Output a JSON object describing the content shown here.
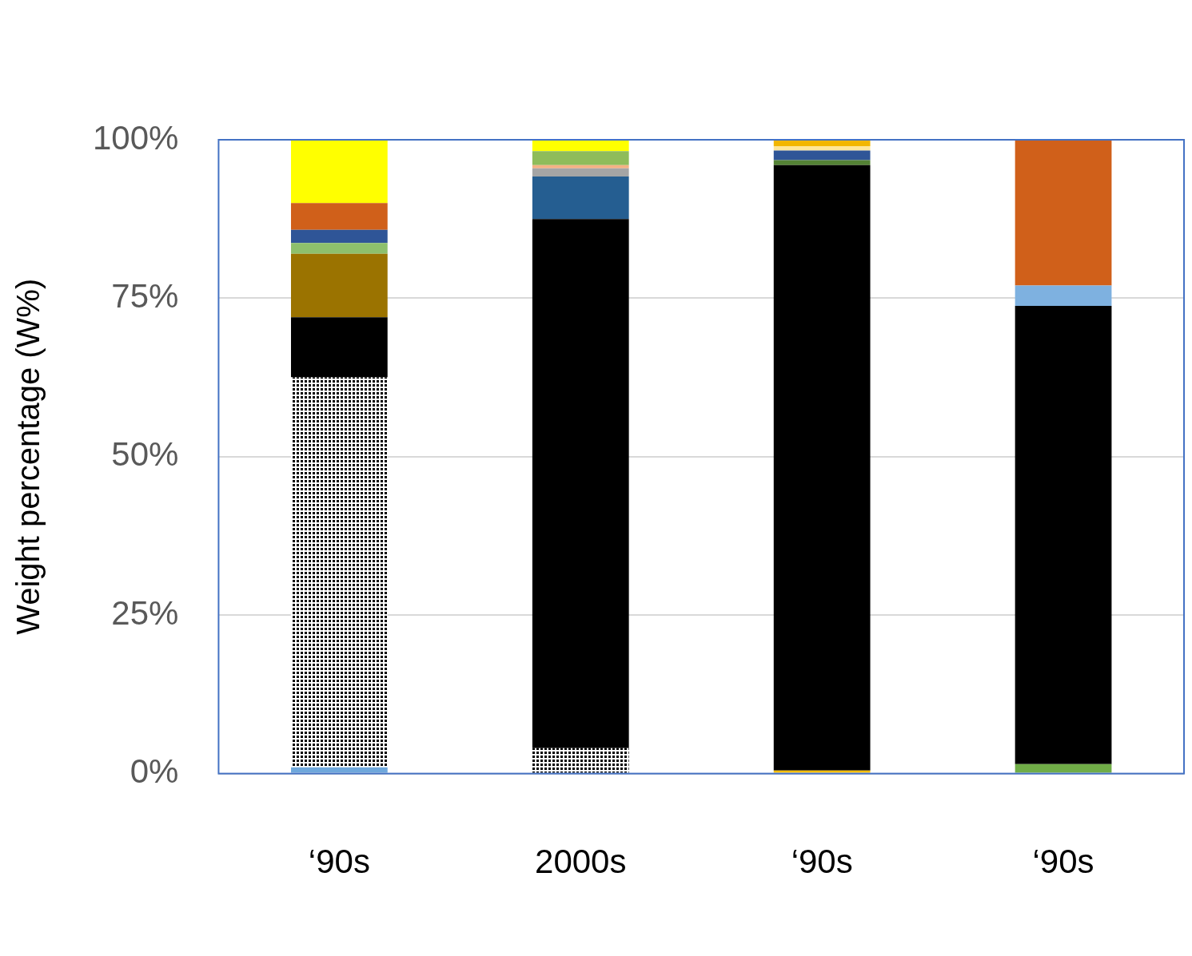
{
  "chart_data": {
    "type": "bar",
    "stacked": true,
    "y_label": "Weight percentage (W%)",
    "categories": [
      "‘90s",
      "2000s",
      "‘90s",
      "‘90s"
    ],
    "series": [
      {
        "color": "#6fa8dc",
        "values": [
          1,
          0,
          0,
          0
        ]
      },
      {
        "color": "#000000",
        "marker": "dots",
        "values": [
          61.5,
          4,
          0,
          0
        ]
      },
      {
        "color": "#ffc000",
        "values": [
          0,
          0,
          0.5,
          0
        ]
      },
      {
        "color": "#70ad47",
        "values": [
          0,
          0,
          0,
          1.5
        ]
      },
      {
        "color": "#000000",
        "values": [
          9.5,
          83.5,
          95.5,
          72.3
        ]
      },
      {
        "color": "#9b7300",
        "values": [
          10,
          0,
          0,
          0
        ]
      },
      {
        "color": "#255e91",
        "values": [
          0,
          6.7,
          0,
          0
        ]
      },
      {
        "color": "#548235",
        "values": [
          0,
          0,
          0.8,
          0
        ]
      },
      {
        "color": "#7eb1e0",
        "values": [
          0,
          0,
          0,
          3.2
        ]
      },
      {
        "color": "#8ec06c",
        "values": [
          1.7,
          0,
          0,
          0
        ]
      },
      {
        "color": "#2f5597",
        "values": [
          2.1,
          0,
          1.5,
          0
        ]
      },
      {
        "color": "#a5a5a5",
        "values": [
          0,
          1.3,
          0,
          0
        ]
      },
      {
        "color": "#f4b183",
        "values": [
          0,
          0.5,
          0,
          0
        ]
      },
      {
        "color": "#8fbc5a",
        "values": [
          0,
          2.2,
          0,
          0
        ]
      },
      {
        "color": "#ffe699",
        "values": [
          0,
          0,
          0.7,
          0
        ]
      },
      {
        "color": "#d0601a",
        "values": [
          4.2,
          0,
          0,
          23
        ]
      },
      {
        "color": "#ffff00",
        "values": [
          10,
          1.8,
          0,
          0
        ]
      },
      {
        "color": "#f2b600",
        "values": [
          0,
          0,
          1,
          0
        ]
      }
    ],
    "ylim": [
      0,
      100
    ],
    "yticks": [
      {
        "value": 0,
        "label": "0%"
      },
      {
        "value": 25,
        "label": "25%"
      },
      {
        "value": 50,
        "label": "50%"
      },
      {
        "value": 75,
        "label": "75%"
      },
      {
        "value": 100,
        "label": "100%"
      }
    ],
    "grid": true
  }
}
